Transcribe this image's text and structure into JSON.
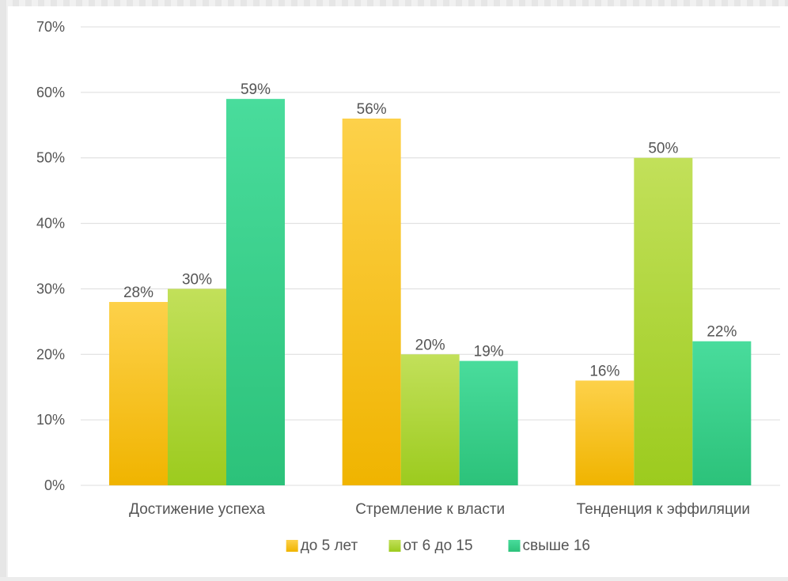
{
  "chart_data": {
    "type": "bar",
    "categories": [
      "Достижение успеха",
      "Стремление к власти",
      "Тенденция к эффиляции"
    ],
    "series": [
      {
        "name": "до 5 лет",
        "values": [
          28,
          56,
          16
        ],
        "labels": [
          "28%",
          "56%",
          "16%"
        ]
      },
      {
        "name": "от 6 до 15",
        "values": [
          30,
          20,
          50
        ],
        "labels": [
          "30%",
          "20%",
          "50%"
        ]
      },
      {
        "name": "свыше 16",
        "values": [
          59,
          19,
          22
        ],
        "labels": [
          "59%",
          "19%",
          "22%"
        ]
      }
    ],
    "y_ticks": [
      "0%",
      "10%",
      "20%",
      "30%",
      "40%",
      "50%",
      "60%",
      "70%"
    ],
    "ylim": [
      0,
      70
    ],
    "y_unit": "%",
    "grid": true,
    "legend_position": "bottom",
    "colors": {
      "series": [
        {
          "top": "#fdd14a",
          "bottom": "#f0b400"
        },
        {
          "top": "#c2e05a",
          "bottom": "#9ccb1e"
        },
        {
          "top": "#49dc9c",
          "bottom": "#2cc27a"
        }
      ],
      "grid": "#dcdcdc",
      "text": "#555555",
      "label": "#555555"
    }
  }
}
